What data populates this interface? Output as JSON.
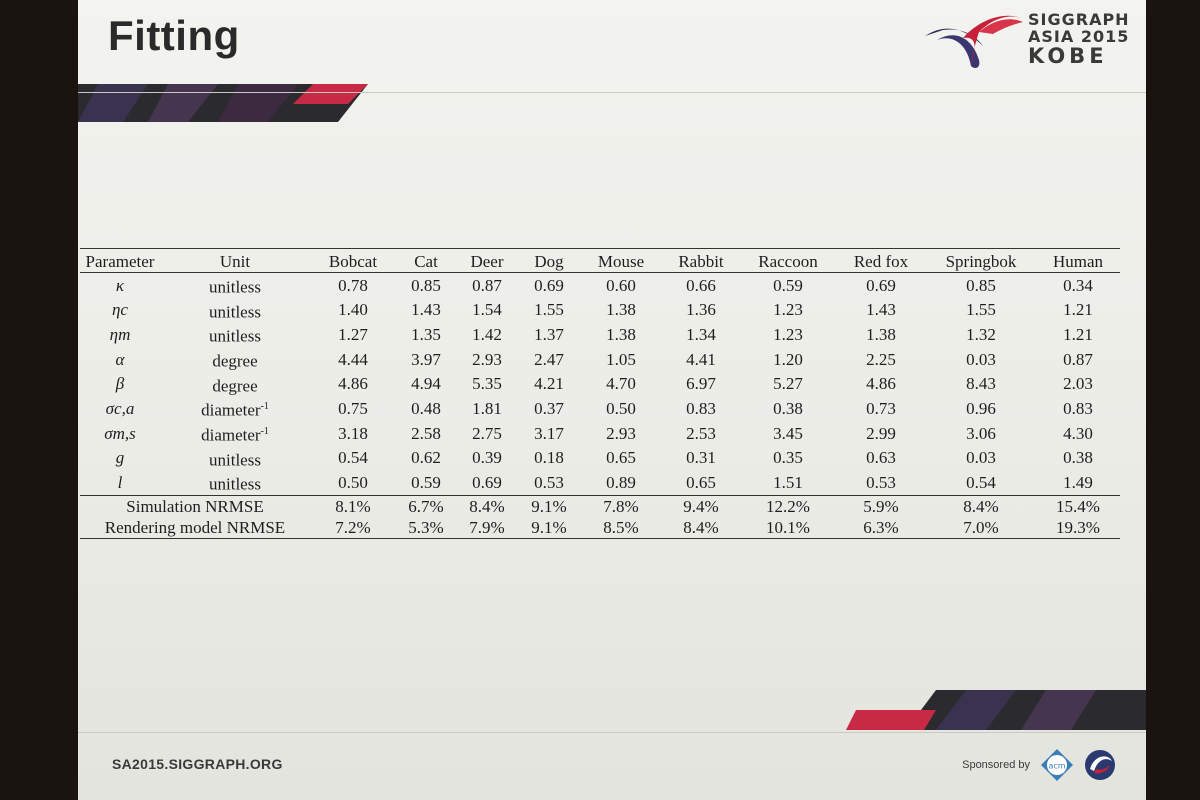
{
  "slide": {
    "title": "Fitting",
    "footer_url": "SA2015.SIGGRAPH.ORG",
    "sponsor_label": "Sponsored by",
    "sponsor_badge": "acm"
  },
  "logo": {
    "line1": "SIGGRAPH",
    "line2": "ASIA 2015",
    "line3": "KOBE",
    "colors": {
      "red": "#c8203a",
      "navy": "#2a2a5a"
    }
  },
  "table": {
    "headers": [
      "Parameter",
      "Unit",
      "Bobcat",
      "Cat",
      "Deer",
      "Dog",
      "Mouse",
      "Rabbit",
      "Raccoon",
      "Red fox",
      "Springbok",
      "Human"
    ],
    "rows": [
      {
        "param": "κ",
        "unit": "unitless",
        "unit_sup": "",
        "values": [
          "0.78",
          "0.85",
          "0.87",
          "0.69",
          "0.60",
          "0.66",
          "0.59",
          "0.69",
          "0.85",
          "0.34"
        ]
      },
      {
        "param": "ηc",
        "unit": "unitless",
        "unit_sup": "",
        "values": [
          "1.40",
          "1.43",
          "1.54",
          "1.55",
          "1.38",
          "1.36",
          "1.23",
          "1.43",
          "1.55",
          "1.21"
        ]
      },
      {
        "param": "ηm",
        "unit": "unitless",
        "unit_sup": "",
        "values": [
          "1.27",
          "1.35",
          "1.42",
          "1.37",
          "1.38",
          "1.34",
          "1.23",
          "1.38",
          "1.32",
          "1.21"
        ]
      },
      {
        "param": "α",
        "unit": "degree",
        "unit_sup": "",
        "values": [
          "4.44",
          "3.97",
          "2.93",
          "2.47",
          "1.05",
          "4.41",
          "1.20",
          "2.25",
          "0.03",
          "0.87"
        ]
      },
      {
        "param": "β",
        "unit": "degree",
        "unit_sup": "",
        "values": [
          "4.86",
          "4.94",
          "5.35",
          "4.21",
          "4.70",
          "6.97",
          "5.27",
          "4.86",
          "8.43",
          "2.03"
        ]
      },
      {
        "param": "σc,a",
        "unit": "diameter",
        "unit_sup": "-1",
        "values": [
          "0.75",
          "0.48",
          "1.81",
          "0.37",
          "0.50",
          "0.83",
          "0.38",
          "0.73",
          "0.96",
          "0.83"
        ]
      },
      {
        "param": "σm,s",
        "unit": "diameter",
        "unit_sup": "-1",
        "values": [
          "3.18",
          "2.58",
          "2.75",
          "3.17",
          "2.93",
          "2.53",
          "3.45",
          "2.99",
          "3.06",
          "4.30"
        ]
      },
      {
        "param": "g",
        "unit": "unitless",
        "unit_sup": "",
        "values": [
          "0.54",
          "0.62",
          "0.39",
          "0.18",
          "0.65",
          "0.31",
          "0.35",
          "0.63",
          "0.03",
          "0.38"
        ]
      },
      {
        "param": "l",
        "unit": "unitless",
        "unit_sup": "",
        "values": [
          "0.50",
          "0.59",
          "0.69",
          "0.53",
          "0.89",
          "0.65",
          "1.51",
          "0.53",
          "0.54",
          "1.49"
        ]
      }
    ],
    "metrics": [
      {
        "label": "Simulation NRMSE",
        "values": [
          "8.1%",
          "6.7%",
          "8.4%",
          "9.1%",
          "7.8%",
          "9.4%",
          "12.2%",
          "5.9%",
          "8.4%",
          "15.4%"
        ]
      },
      {
        "label": "Rendering model NRMSE",
        "values": [
          "7.2%",
          "5.3%",
          "7.9%",
          "9.1%",
          "8.5%",
          "8.4%",
          "10.1%",
          "6.3%",
          "7.0%",
          "19.3%"
        ]
      }
    ]
  }
}
